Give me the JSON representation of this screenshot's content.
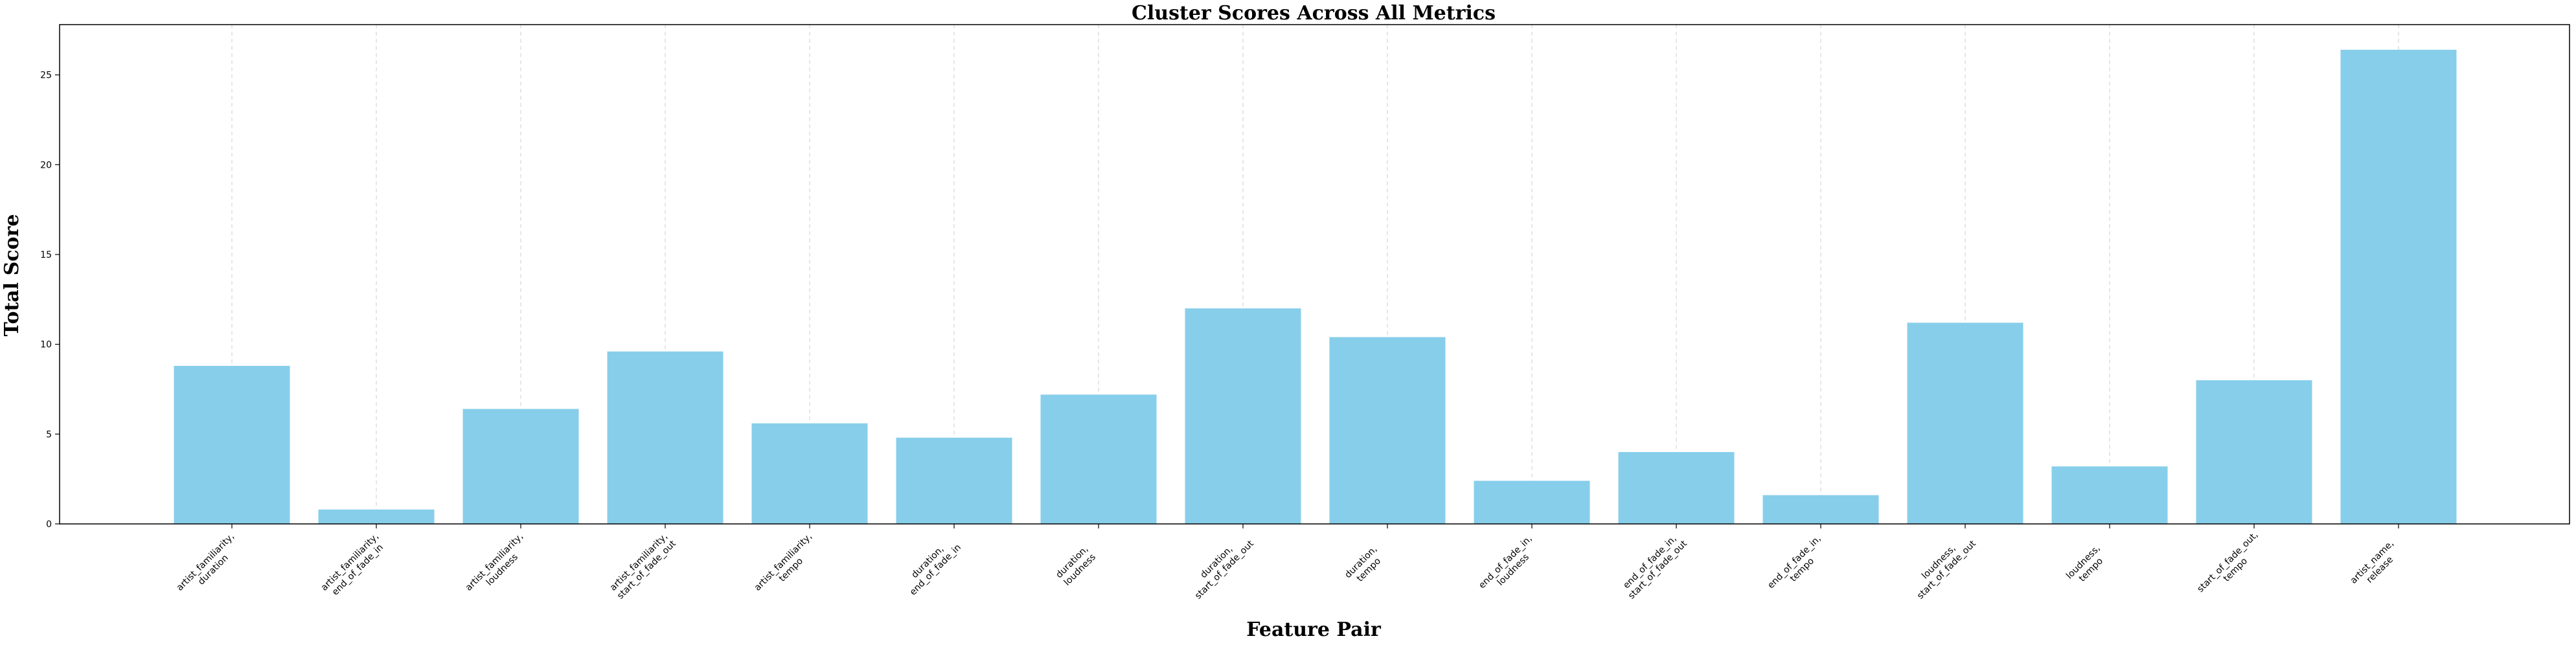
{
  "chart_data": {
    "type": "bar",
    "title": "Cluster Scores Across All Metrics",
    "xlabel": "Feature Pair",
    "ylabel": "Total Score",
    "ylim": [
      0,
      27.8
    ],
    "yticks": [
      0,
      5,
      10,
      15,
      20,
      25
    ],
    "grid": "vertical-dashed",
    "bar_color": "#87CEEB",
    "categories": [
      [
        "artist_familiarity,",
        "duration"
      ],
      [
        "artist_familiarity,",
        "end_of_fade_in"
      ],
      [
        "artist_familiarity,",
        "loudness"
      ],
      [
        "artist_familiarity,",
        "start_of_fade_out"
      ],
      [
        "artist_familiarity,",
        "tempo"
      ],
      [
        "duration,",
        "end_of_fade_in"
      ],
      [
        "duration,",
        "loudness"
      ],
      [
        "duration,",
        "start_of_fade_out"
      ],
      [
        "duration,",
        "tempo"
      ],
      [
        "end_of_fade_in,",
        "loudness"
      ],
      [
        "end_of_fade_in,",
        "start_of_fade_out"
      ],
      [
        "end_of_fade_in,",
        "tempo"
      ],
      [
        "loudness,",
        "start_of_fade_out"
      ],
      [
        "loudness,",
        "tempo"
      ],
      [
        "start_of_fade_out,",
        "tempo"
      ],
      [
        "artist_name,",
        "release"
      ]
    ],
    "values": [
      8.8,
      0.8,
      6.4,
      9.6,
      5.6,
      4.8,
      7.2,
      12.0,
      10.4,
      2.4,
      4.0,
      1.6,
      11.2,
      3.2,
      8.0,
      26.4
    ]
  }
}
